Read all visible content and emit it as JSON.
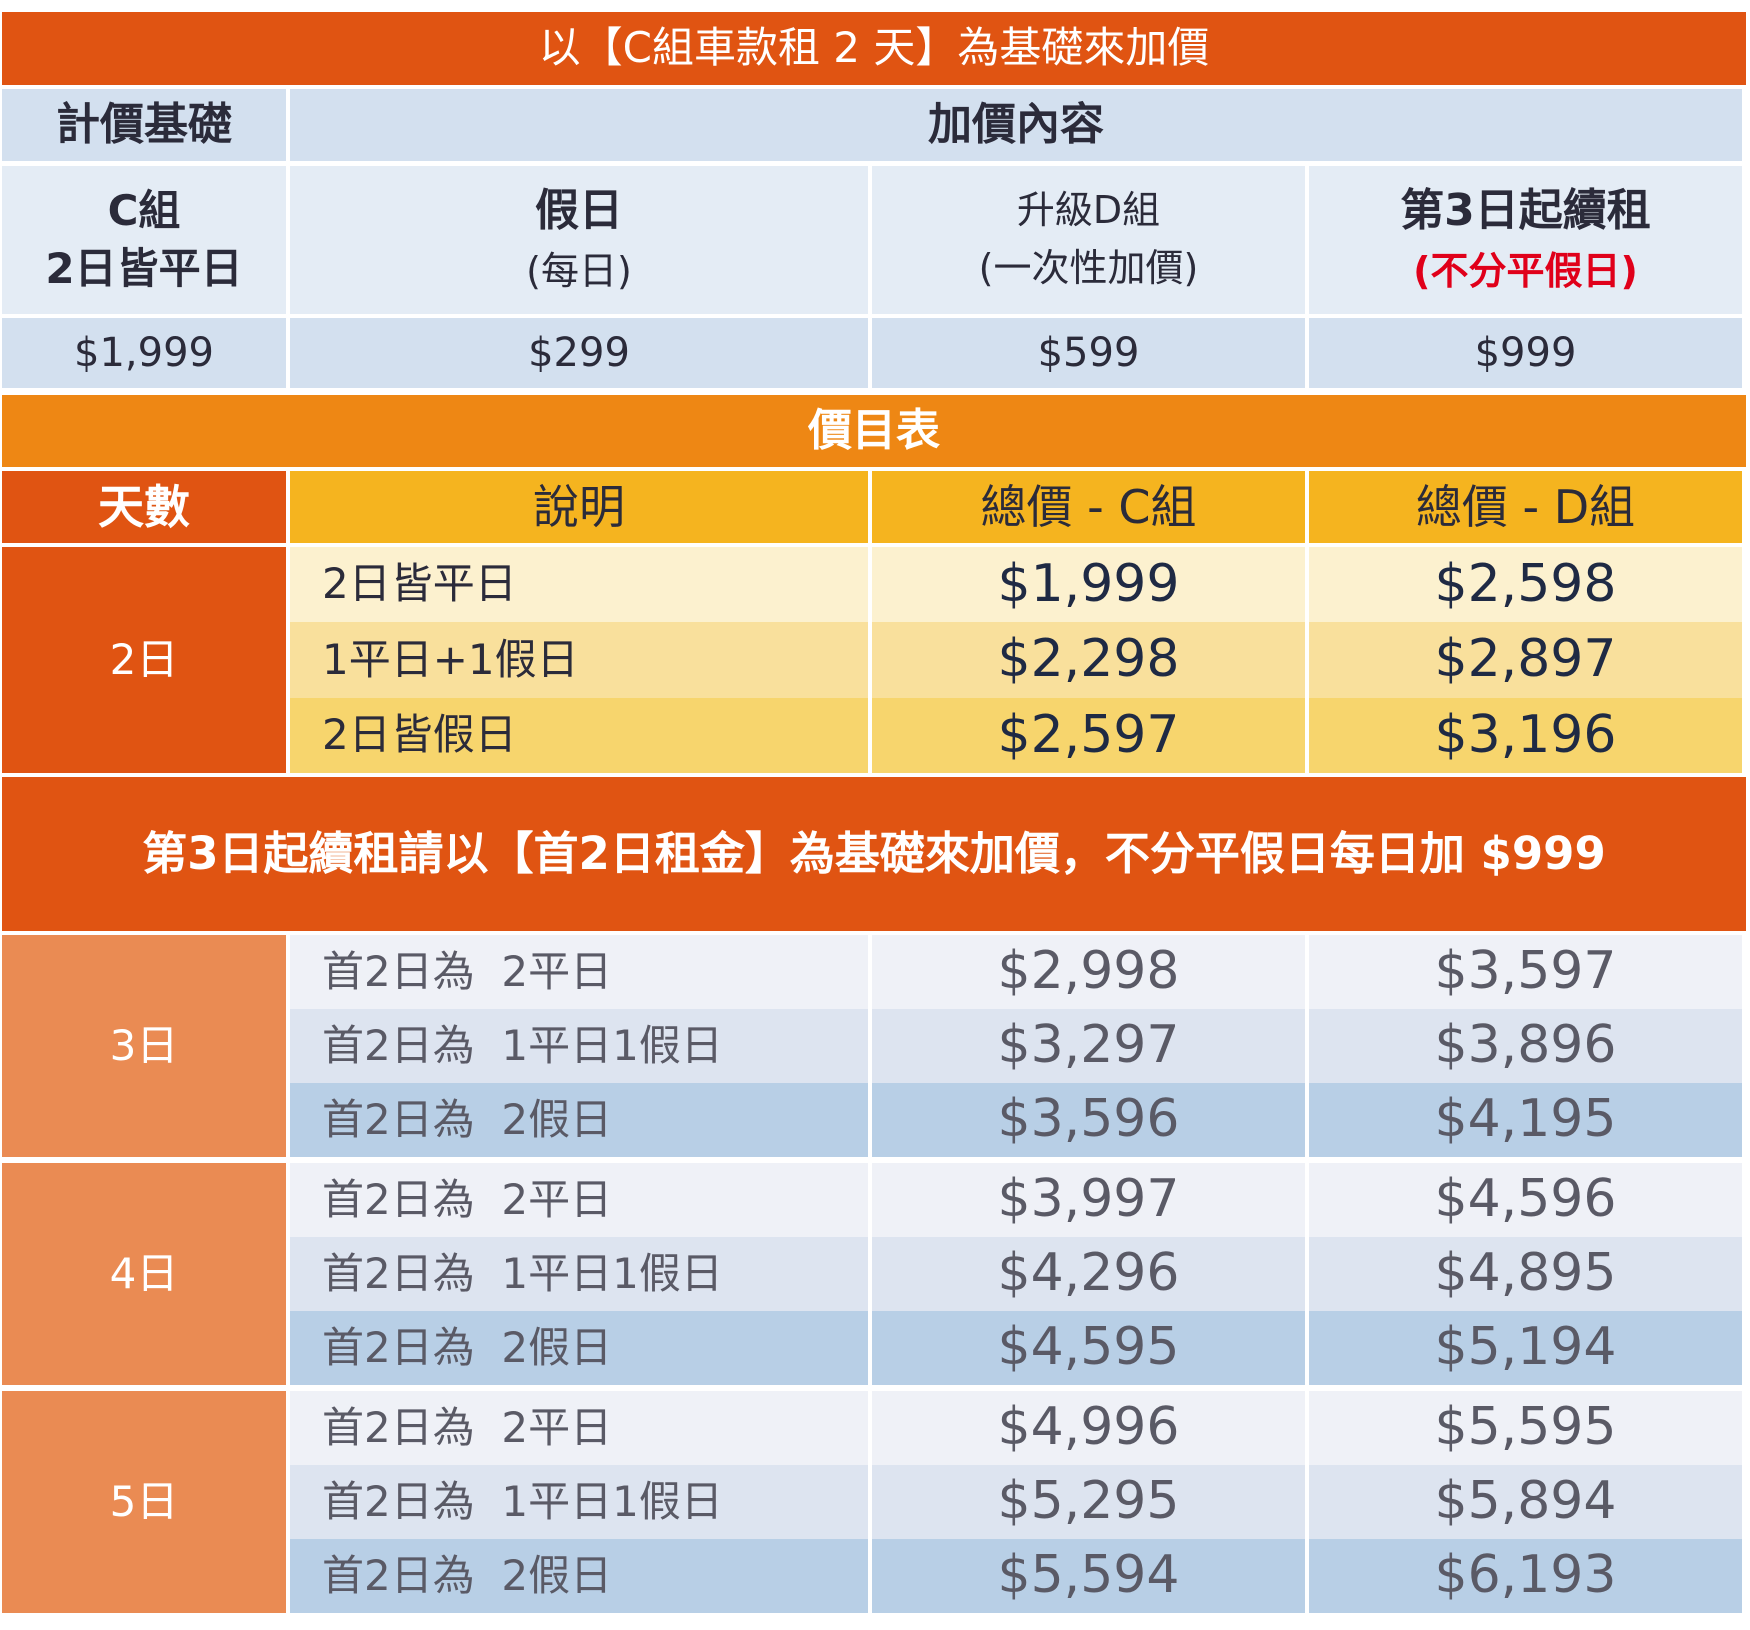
{
  "title": "以【C組車款租 2 天】為基礎來加價",
  "header": {
    "base_label": "計價基礎",
    "addon_label": "加價內容"
  },
  "pricing_basis": {
    "base": {
      "line1": "C組",
      "line2": "2日皆平日",
      "price": "$1,999"
    },
    "holiday": {
      "line1": "假日",
      "line2": "(每日)",
      "price": "$299"
    },
    "upgrade": {
      "line1": "升級D組",
      "line2": "(一次性加價)",
      "price": "$599"
    },
    "extension": {
      "line1": "第3日起續租",
      "line2": "(不分平假日)",
      "price": "$999"
    }
  },
  "price_list_title": "價目表",
  "columns": {
    "days": "天數",
    "desc": "說明",
    "total_c": "總價 - C組",
    "total_d": "總價 - D組"
  },
  "two_day": {
    "label": "2日",
    "rows": [
      {
        "desc": "2日皆平日",
        "c": "$1,999",
        "d": "$2,598"
      },
      {
        "desc": "1平日+1假日",
        "c": "$2,298",
        "d": "$2,897"
      },
      {
        "desc": "2日皆假日",
        "c": "$2,597",
        "d": "$3,196"
      }
    ]
  },
  "note": "第3日起續租請以【首2日租金】為基礎來加價，不分平假日每日加 $999",
  "extended": [
    {
      "label": "3日",
      "rows": [
        {
          "desc": "首2日為  2平日",
          "c": "$2,998",
          "d": "$3,597"
        },
        {
          "desc": "首2日為  1平日1假日",
          "c": "$3,297",
          "d": "$3,896"
        },
        {
          "desc": "首2日為  2假日",
          "c": "$3,596",
          "d": "$4,195"
        }
      ]
    },
    {
      "label": "4日",
      "rows": [
        {
          "desc": "首2日為  2平日",
          "c": "$3,997",
          "d": "$4,596"
        },
        {
          "desc": "首2日為  1平日1假日",
          "c": "$4,296",
          "d": "$4,895"
        },
        {
          "desc": "首2日為  2假日",
          "c": "$4,595",
          "d": "$5,194"
        }
      ]
    },
    {
      "label": "5日",
      "rows": [
        {
          "desc": "首2日為  2平日",
          "c": "$4,996",
          "d": "$5,595"
        },
        {
          "desc": "首2日為  1平日1假日",
          "c": "$5,295",
          "d": "$5,894"
        },
        {
          "desc": "首2日為  2假日",
          "c": "$5,594",
          "d": "$6,193"
        }
      ]
    }
  ]
}
